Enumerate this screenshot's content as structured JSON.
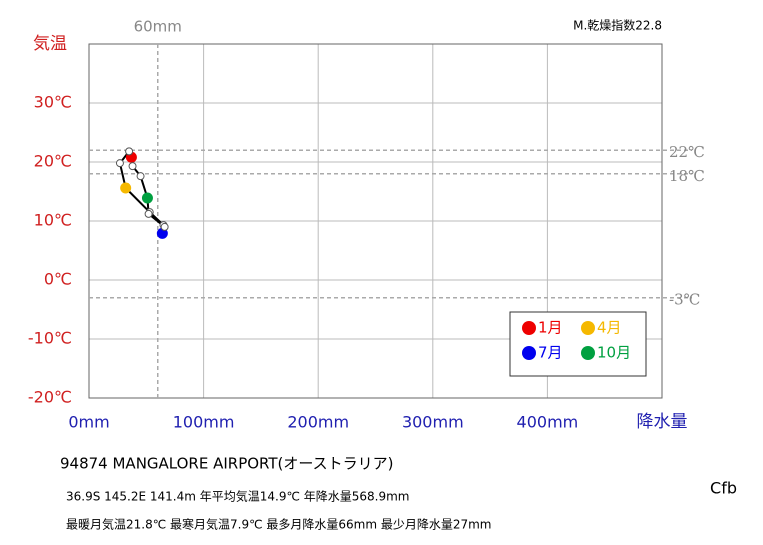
{
  "chart_data": {
    "type": "climograph",
    "ylabel": "気温",
    "xlabel": "降水量",
    "xlim": [
      0,
      500
    ],
    "ylim": [
      -20,
      40
    ],
    "xticks": [
      {
        "value": 0,
        "label": "0mm"
      },
      {
        "value": 100,
        "label": "100mm"
      },
      {
        "value": 200,
        "label": "200mm"
      },
      {
        "value": 300,
        "label": "300mm"
      },
      {
        "value": 400,
        "label": "400mm"
      }
    ],
    "yticks": [
      {
        "value": -20,
        "label": "-20℃"
      },
      {
        "value": -10,
        "label": "-10℃"
      },
      {
        "value": 0,
        "label": "0℃"
      },
      {
        "value": 10,
        "label": "10℃"
      },
      {
        "value": 20,
        "label": "20℃"
      },
      {
        "value": 30,
        "label": "30℃"
      }
    ],
    "grid": true,
    "x": [
      37,
      35,
      27,
      32,
      53,
      65,
      64,
      66,
      52,
      51,
      45,
      38
    ],
    "values": [
      20.8,
      21.8,
      19.8,
      15.6,
      11.5,
      9.3,
      7.9,
      9.0,
      11.2,
      13.9,
      17.6,
      19.3
    ],
    "point_colors": [
      "#ee0000",
      "#ffffff",
      "#ffffff",
      "#f5b800",
      "#ffffff",
      "#ffffff",
      "#0000ee",
      "#ffffff",
      "#ffffff",
      "#00a040",
      "#ffffff",
      "#ffffff"
    ],
    "line_color": "#000000",
    "x_reference_lines": [
      {
        "value": 60,
        "label": "60mm"
      }
    ],
    "y_reference_lines": [
      {
        "value": 22,
        "label": "22℃"
      },
      {
        "value": 18,
        "label": "18℃"
      },
      {
        "value": -3,
        "label": "-3℃"
      }
    ],
    "legend": [
      {
        "name": "1月",
        "color": "#ee0000"
      },
      {
        "name": "4月",
        "color": "#f5b800"
      },
      {
        "name": "7月",
        "color": "#0000ee"
      },
      {
        "name": "10月",
        "color": "#00a040"
      }
    ],
    "aridity": "M.乾燥指数22.8",
    "station": "94874  MANGALORE AIRPORT(オーストラリア)",
    "info1": "36.9S  145.2E 141.4m  年平均気温14.9℃ 年降水量568.9mm",
    "info2": "最暖月気温21.8℃ 最寒月気温7.9℃ 最多月降水量66mm 最少月降水量27mm",
    "climate": "Cfb"
  }
}
